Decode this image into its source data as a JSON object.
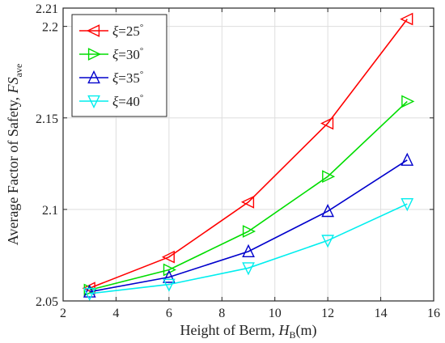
{
  "chart_data": {
    "type": "line",
    "xlabel": "Height of Berm, H_B(m)",
    "xlabel_parts": {
      "prefix": "Height of Berm, ",
      "var": "H",
      "sub": "B",
      "suffix": "(m)"
    },
    "ylabel": "Average Factor of Safety, FS_ave",
    "ylabel_parts": {
      "prefix": "Average Factor of Safety, ",
      "var": "FS",
      "sub": "ave"
    },
    "xlim": [
      2,
      16
    ],
    "ylim": [
      2.05,
      2.21
    ],
    "x_ticks": [
      2,
      4,
      6,
      8,
      10,
      12,
      14,
      16
    ],
    "x_tick_labels": [
      "2",
      "4",
      "6",
      "8",
      "10",
      "12",
      "14",
      "16"
    ],
    "y_ticks": [
      2.05,
      2.1,
      2.15,
      2.2,
      2.21
    ],
    "y_tick_labels": [
      "2.05",
      "2.1",
      "2.15",
      "2.2",
      "2.21"
    ],
    "grid": true,
    "legend_position": "top-left",
    "x": [
      3,
      6,
      9,
      12,
      15
    ],
    "series": [
      {
        "name": "ξ=25°",
        "symbol": "ξ",
        "value_text": "=25",
        "unit": "°",
        "marker": "triangle-left",
        "color": "#ff0000",
        "values": [
          2.057,
          2.074,
          2.104,
          2.147,
          2.204
        ]
      },
      {
        "name": "ξ=30°",
        "symbol": "ξ",
        "value_text": "=30",
        "unit": "°",
        "marker": "triangle-right",
        "color": "#00dd00",
        "values": [
          2.056,
          2.067,
          2.088,
          2.118,
          2.159
        ]
      },
      {
        "name": "ξ=35°",
        "symbol": "ξ",
        "value_text": "=35",
        "unit": "°",
        "marker": "triangle-up",
        "color": "#0000cc",
        "values": [
          2.055,
          2.063,
          2.077,
          2.099,
          2.127
        ]
      },
      {
        "name": "ξ=40°",
        "symbol": "ξ",
        "value_text": "=40",
        "unit": "°",
        "marker": "triangle-down",
        "color": "#00eeee",
        "values": [
          2.054,
          2.059,
          2.068,
          2.083,
          2.103
        ]
      }
    ]
  }
}
